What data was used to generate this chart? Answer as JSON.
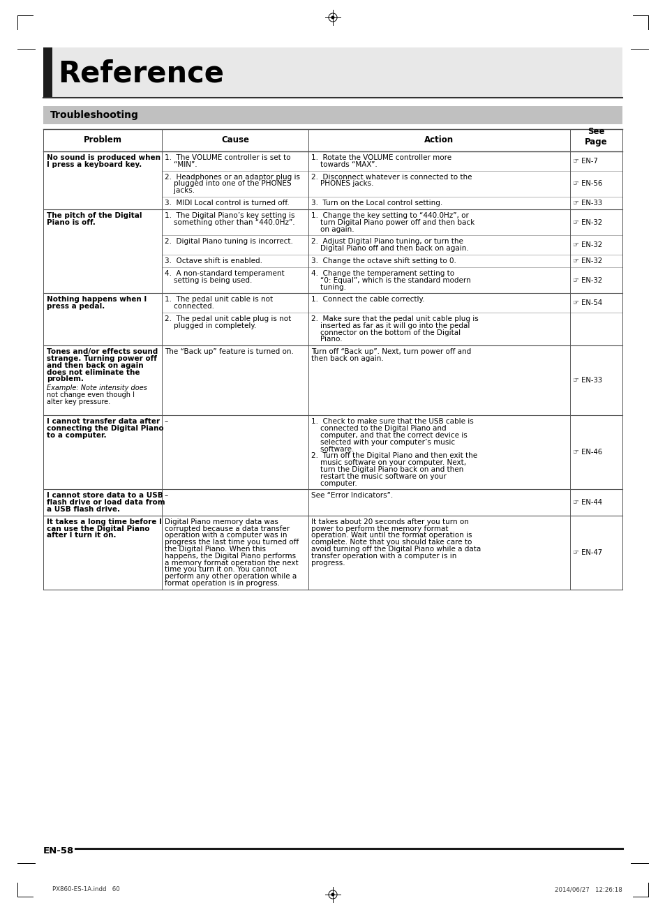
{
  "page_title": "Reference",
  "section_title": "Troubleshooting",
  "footer_text": "EN-58",
  "footer_file": "PX860-ES-1A.indd   60",
  "footer_date": "2014/06/27   12:26:18",
  "bg_color": "#ffffff",
  "table_rows": [
    {
      "problem": "No sound is produced when\nI press a keyboard key.",
      "problem_bold": true,
      "example": null,
      "causes": [
        "1.  The VOLUME controller is set to\n    “MIN”.",
        "2.  Headphones or an adaptor plug is\n    plugged into one of the PHONES\n    jacks.",
        "3.  MIDI Local control is turned off."
      ],
      "actions": [
        "1.  Rotate the VOLUME controller more\n    towards “MAX”.",
        "2.  Disconnect whatever is connected to the\n    PHONES jacks.",
        "3.  Turn on the Local control setting."
      ],
      "pages": [
        "EN-7",
        "EN-56",
        "EN-33"
      ]
    },
    {
      "problem": "The pitch of the Digital\nPiano is off.",
      "problem_bold": true,
      "example": null,
      "causes": [
        "1.  The Digital Piano’s key setting is\n    something other than “440.0Hz”.",
        "2.  Digital Piano tuning is incorrect.",
        "3.  Octave shift is enabled.",
        "4.  A non-standard temperament\n    setting is being used."
      ],
      "actions": [
        "1.  Change the key setting to “440.0Hz”, or\n    turn Digital Piano power off and then back\n    on again.",
        "2.  Adjust Digital Piano tuning, or turn the\n    Digital Piano off and then back on again.",
        "3.  Change the octave shift setting to 0.",
        "4.  Change the temperament setting to\n    “0: Equal”, which is the standard modern\n    tuning."
      ],
      "pages": [
        "EN-32",
        "EN-32",
        "EN-32",
        "EN-32"
      ]
    },
    {
      "problem": "Nothing happens when I\npress a pedal.",
      "problem_bold": true,
      "example": null,
      "causes": [
        "1.  The pedal unit cable is not\n    connected.",
        "2.  The pedal unit cable plug is not\n    plugged in completely."
      ],
      "actions": [
        "1.  Connect the cable correctly.",
        "2.  Make sure that the pedal unit cable plug is\n    inserted as far as it will go into the pedal\n    connector on the bottom of the Digital\n    Piano."
      ],
      "pages": [
        "EN-54",
        ""
      ]
    },
    {
      "problem": "Tones and/or effects sound\nstrange. Turning power off\nand then back on again\ndoes not eliminate the\nproblem.",
      "problem_bold": true,
      "example": "Example: Note intensity does\nnot change even though I\nalter key pressure.",
      "causes": [
        "The “Back up” feature is turned on."
      ],
      "actions": [
        "Turn off “Back up”. Next, turn power off and\nthen back on again."
      ],
      "pages": [
        "EN-33"
      ]
    },
    {
      "problem": "I cannot transfer data after\nconnecting the Digital Piano\nto a computer.",
      "problem_bold": true,
      "example": null,
      "causes": [
        "–"
      ],
      "actions": [
        "1.  Check to make sure that the USB cable is\n    connected to the Digital Piano and\n    computer, and that the correct device is\n    selected with your computer’s music\n    software.\n2.  Turn off the Digital Piano and then exit the\n    music software on your computer. Next,\n    turn the Digital Piano back on and then\n    restart the music software on your\n    computer."
      ],
      "pages": [
        "EN-46"
      ]
    },
    {
      "problem": "I cannot store data to a USB\nflash drive or load data from\na USB flash drive.",
      "problem_bold": true,
      "example": null,
      "causes": [
        "–"
      ],
      "actions": [
        "See “Error Indicators”."
      ],
      "pages": [
        "EN-44"
      ]
    },
    {
      "problem": "It takes a long time before I\ncan use the Digital Piano\nafter I turn it on.",
      "problem_bold": true,
      "example": null,
      "causes": [
        "Digital Piano memory data was\ncorrupted because a data transfer\noperation with a computer was in\nprogress the last time you turned off\nthe Digital Piano. When this\nhappens, the Digital Piano performs\na memory format operation the next\ntime you turn it on. You cannot\nperform any other operation while a\nformat operation is in progress."
      ],
      "actions": [
        "It takes about 20 seconds after you turn on\npower to perform the memory format\noperation. Wait until the format operation is\ncomplete. Note that you should take care to\navoid turning off the Digital Piano while a data\ntransfer operation with a computer is in\nprogress."
      ],
      "pages": [
        "EN-47"
      ]
    }
  ]
}
